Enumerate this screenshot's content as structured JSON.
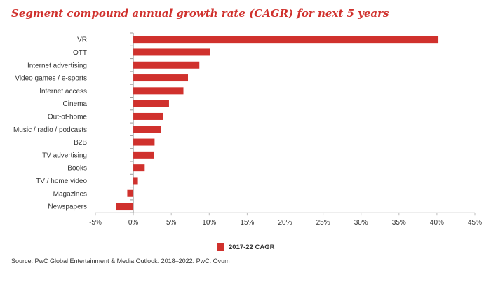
{
  "chart_data": {
    "type": "bar",
    "orientation": "horizontal",
    "title": "Segment compound annual growth rate (CAGR) for next 5 years",
    "categories": [
      "VR",
      "OTT",
      "Internet advertising",
      "Video games / e-sports",
      "Internet access",
      "Cinema",
      "Out-of-home",
      "Music / radio / podcasts",
      "B2B",
      "TV advertising",
      "Books",
      "TV / home video",
      "Magazines",
      "Newspapers"
    ],
    "series": [
      {
        "name": "2017-22 CAGR",
        "values": [
          40.2,
          10.1,
          8.7,
          7.2,
          6.6,
          4.7,
          3.9,
          3.6,
          2.8,
          2.7,
          1.5,
          0.6,
          -0.8,
          -2.3
        ]
      }
    ],
    "xlim": [
      -5,
      45
    ],
    "xticks": [
      -5,
      0,
      5,
      10,
      15,
      20,
      25,
      30,
      35,
      40,
      45
    ],
    "tick_suffix": "%",
    "grid": false,
    "legend": "bottom-center",
    "bar_color": "#d0312d"
  },
  "source": "Source: PwC Global Entertainment & Media Outlook: 2018–2022. PwC. Ovum"
}
